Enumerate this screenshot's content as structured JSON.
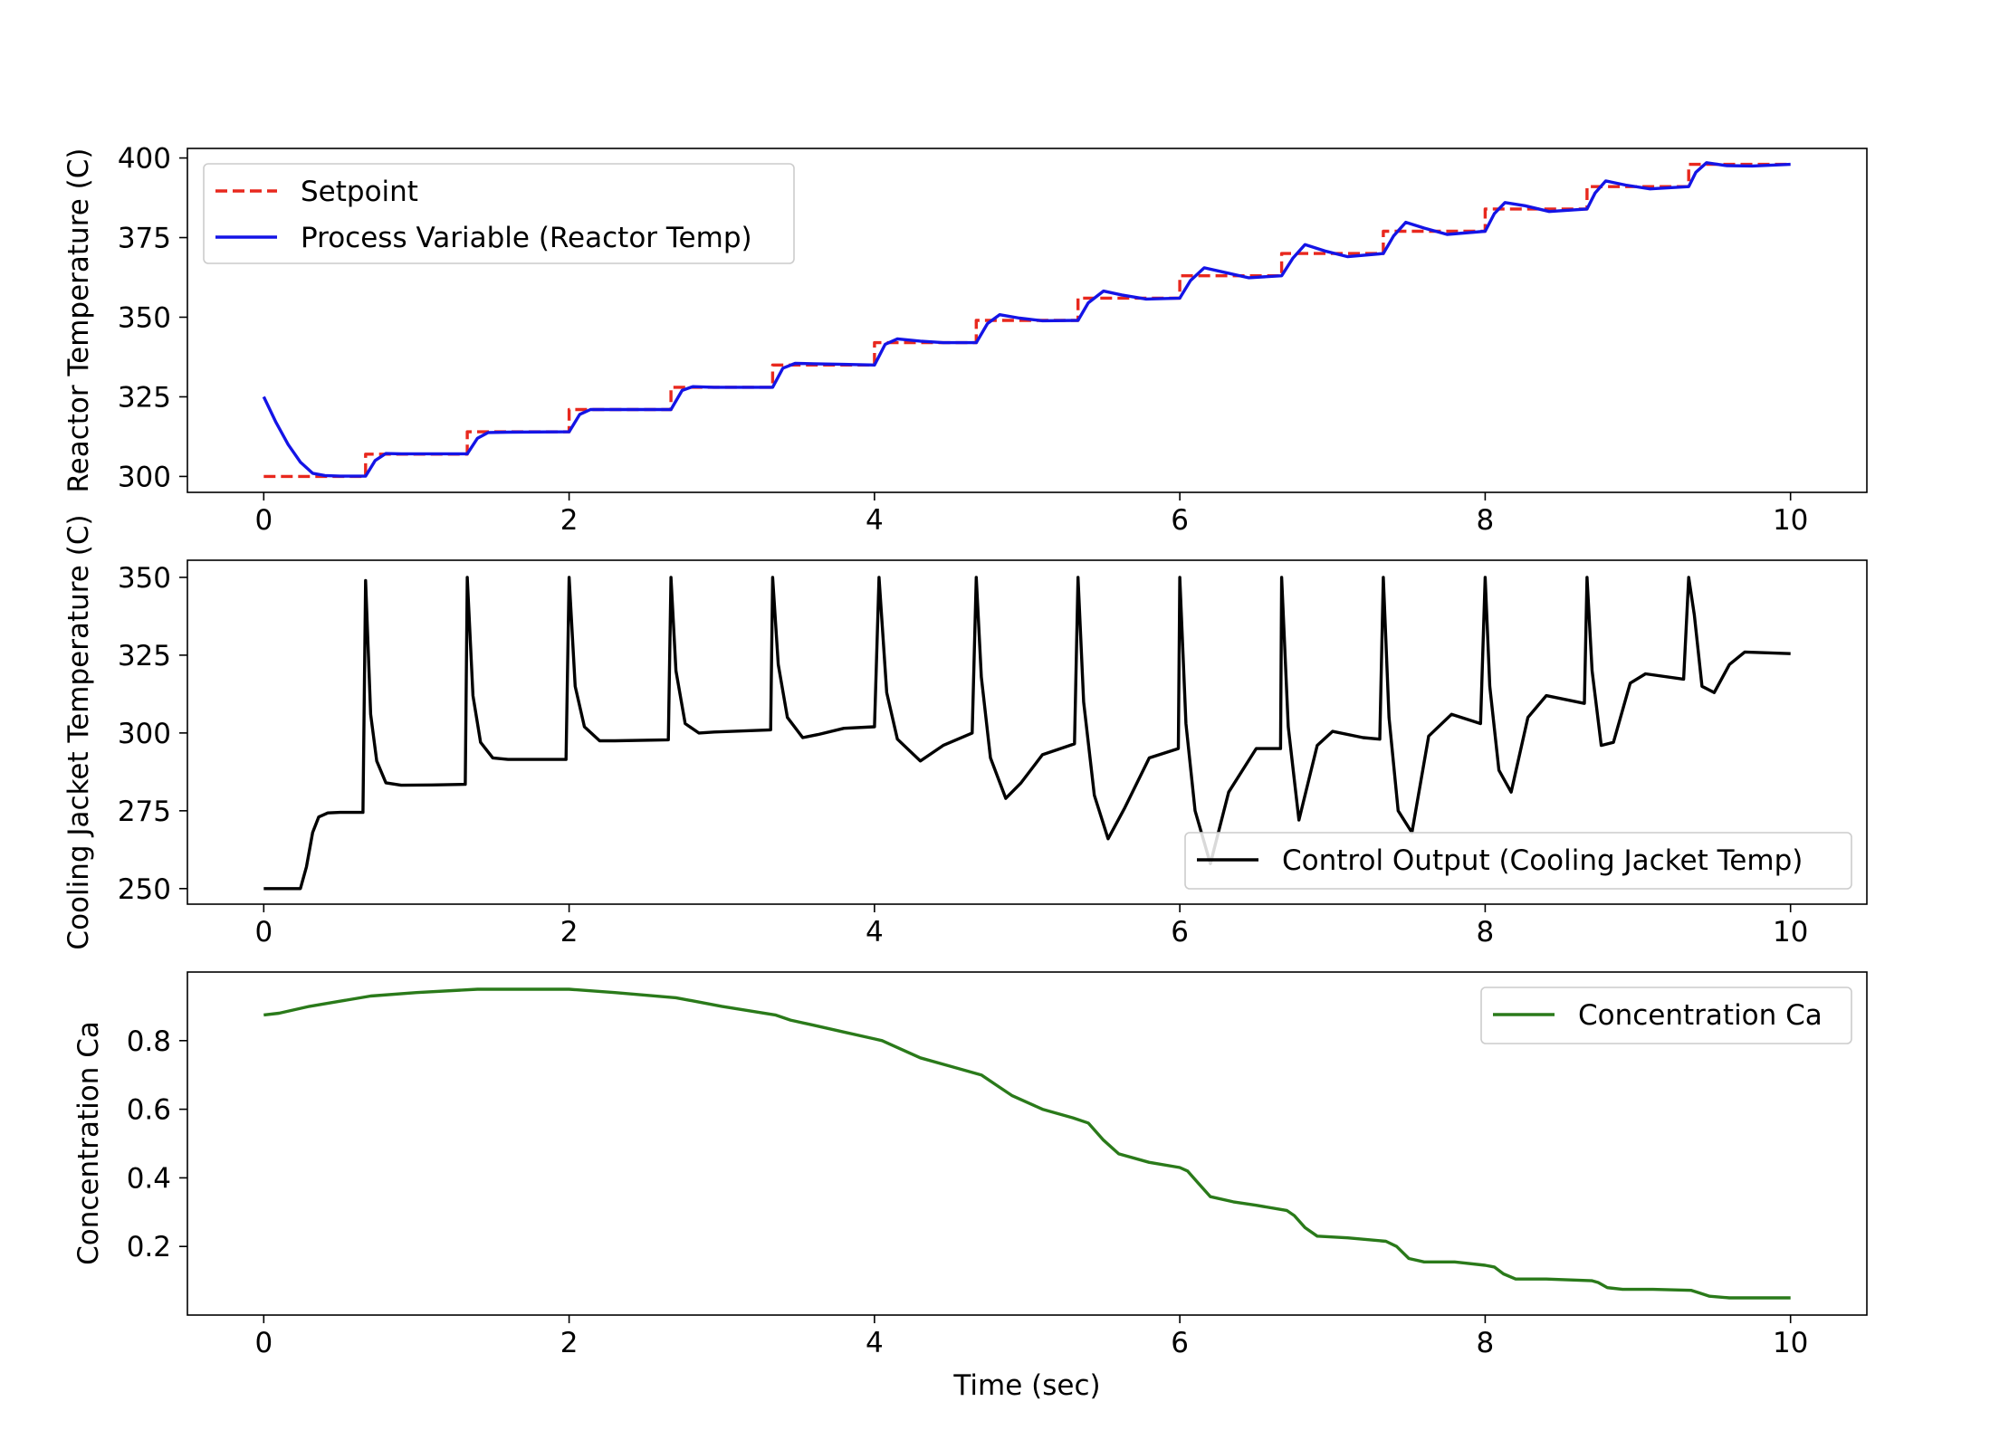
{
  "chart_data": [
    {
      "type": "line",
      "title": "",
      "xlabel": "",
      "ylabel": "Reactor Temperature (C)",
      "xlim": [
        -0.5,
        10.5
      ],
      "ylim": [
        295,
        403
      ],
      "xticks": [
        0,
        2,
        4,
        6,
        8,
        10
      ],
      "yticks": [
        300,
        325,
        350,
        375,
        400
      ],
      "grid": false,
      "legend": "upper-left",
      "series": [
        {
          "name": "Setpoint",
          "color": "#e8281e",
          "style": "dashed",
          "x": [
            0.0,
            0.667,
            0.667,
            1.333,
            1.333,
            2.0,
            2.0,
            2.667,
            2.667,
            3.333,
            3.333,
            4.0,
            4.0,
            4.667,
            4.667,
            5.333,
            5.333,
            6.0,
            6.0,
            6.667,
            6.667,
            7.333,
            7.333,
            8.0,
            8.0,
            8.667,
            8.667,
            9.333,
            9.333,
            10.0
          ],
          "y": [
            300,
            300,
            307,
            307,
            314,
            314,
            321,
            321,
            328,
            328,
            335,
            335,
            342,
            342,
            349,
            349,
            356,
            356,
            363,
            363,
            370,
            370,
            377,
            377,
            384,
            384,
            391,
            391,
            398,
            398
          ]
        },
        {
          "name": "Process Variable (Reactor Temp)",
          "color": "#1414e6",
          "style": "solid",
          "x": [
            0.0,
            0.08,
            0.16,
            0.24,
            0.32,
            0.4,
            0.5,
            0.667,
            0.73,
            0.8,
            0.9,
            1.333,
            1.4,
            1.47,
            1.6,
            2.0,
            2.07,
            2.14,
            2.3,
            2.667,
            2.74,
            2.81,
            2.95,
            3.333,
            3.4,
            3.48,
            3.6,
            3.8,
            4.0,
            4.07,
            4.15,
            4.3,
            4.45,
            4.667,
            4.74,
            4.82,
            4.95,
            5.1,
            5.333,
            5.4,
            5.5,
            5.62,
            5.78,
            6.0,
            6.07,
            6.16,
            6.3,
            6.45,
            6.667,
            6.74,
            6.82,
            6.95,
            7.1,
            7.333,
            7.4,
            7.48,
            7.6,
            7.75,
            8.0,
            8.06,
            8.13,
            8.26,
            8.42,
            8.667,
            8.72,
            8.79,
            8.92,
            9.08,
            9.333,
            9.38,
            9.45,
            9.58,
            9.75,
            10.0
          ],
          "y": [
            325,
            317,
            310,
            304.5,
            301,
            300.3,
            300.1,
            300.1,
            305,
            307.2,
            307.1,
            307.1,
            312,
            313.8,
            313.9,
            314,
            319.5,
            321,
            321,
            321,
            327,
            328.2,
            328,
            328,
            334,
            335.5,
            335.4,
            335.2,
            335,
            341.5,
            343.2,
            342.5,
            342,
            342,
            348,
            350.8,
            349.7,
            348.9,
            349,
            354.5,
            358.2,
            357,
            355.7,
            356,
            361.5,
            365.5,
            364,
            362.4,
            363,
            368.5,
            372.8,
            370.8,
            369,
            370,
            375.5,
            379.8,
            378,
            376,
            377,
            382.5,
            386,
            385,
            383.2,
            384,
            389,
            392.8,
            391.5,
            390.3,
            391,
            395.5,
            398.5,
            397.6,
            397.5,
            398
          ]
        }
      ]
    },
    {
      "type": "line",
      "title": "",
      "xlabel": "Time (sec)",
      "ylabel": "Cooling Jacket Temperature (C)",
      "xlim": [
        -0.5,
        10.5
      ],
      "ylim": [
        245,
        355.5
      ],
      "xticks": [
        0,
        2,
        4,
        6,
        8,
        10
      ],
      "yticks": [
        250,
        275,
        300,
        325,
        350
      ],
      "grid": false,
      "legend": "lower-right",
      "series": [
        {
          "name": "Control Output (Cooling Jacket Temp)",
          "color": "#000000",
          "style": "solid",
          "x": [
            0.0,
            0.24,
            0.28,
            0.32,
            0.36,
            0.42,
            0.5,
            0.65,
            0.667,
            0.7,
            0.74,
            0.8,
            0.9,
            1.1,
            1.32,
            1.333,
            1.37,
            1.42,
            1.5,
            1.6,
            1.98,
            2.0,
            2.04,
            2.1,
            2.2,
            2.3,
            2.65,
            2.667,
            2.7,
            2.76,
            2.85,
            2.95,
            3.32,
            3.333,
            3.37,
            3.43,
            3.53,
            3.63,
            3.8,
            4.0,
            4.03,
            4.08,
            4.15,
            4.3,
            4.45,
            4.64,
            4.667,
            4.7,
            4.76,
            4.86,
            4.96,
            5.1,
            5.31,
            5.333,
            5.37,
            5.44,
            5.53,
            5.64,
            5.8,
            5.99,
            6.0,
            6.04,
            6.1,
            6.2,
            6.32,
            6.5,
            6.66,
            6.667,
            6.71,
            6.78,
            6.9,
            7.0,
            7.2,
            7.31,
            7.333,
            7.37,
            7.43,
            7.52,
            7.63,
            7.78,
            7.97,
            8.0,
            8.03,
            8.09,
            8.17,
            8.28,
            8.4,
            8.65,
            8.667,
            8.7,
            8.76,
            8.84,
            8.95,
            9.05,
            9.3,
            9.333,
            9.37,
            9.42,
            9.5,
            9.6,
            9.7,
            10.0
          ],
          "y": [
            250,
            250,
            257,
            268,
            273,
            274.3,
            274.5,
            274.5,
            349,
            306,
            291,
            284,
            283.2,
            283.3,
            283.5,
            350,
            312,
            297,
            292,
            291.5,
            291.5,
            350,
            315,
            302,
            297.5,
            297.5,
            297.8,
            350,
            320,
            303,
            300,
            300.3,
            301,
            350,
            322,
            305,
            298.5,
            299.5,
            301.5,
            302,
            350,
            313,
            298,
            291,
            296,
            300,
            350,
            318,
            292,
            279,
            284,
            293,
            296.5,
            350,
            310,
            280,
            266,
            276,
            292,
            295,
            350,
            303,
            275,
            258,
            281,
            295,
            295,
            350,
            302,
            272,
            296,
            300.5,
            298.5,
            298,
            350,
            305,
            275,
            268,
            299,
            306,
            303,
            350,
            315,
            288,
            281,
            305,
            312,
            309.5,
            350,
            320,
            296,
            297,
            316,
            319,
            317.3,
            350,
            338,
            315,
            313,
            322,
            326,
            325.5
          ]
        }
      ]
    },
    {
      "type": "line",
      "title": "",
      "xlabel": "Time (sec)",
      "ylabel": "Concentration Ca",
      "xlim": [
        -0.5,
        10.5
      ],
      "ylim": [
        0.0,
        1.0
      ],
      "xticks": [
        0,
        2,
        4,
        6,
        8,
        10
      ],
      "yticks": [
        0.2,
        0.4,
        0.6,
        0.8
      ],
      "yticklabels": [
        "0.2",
        "0.4",
        "0.6",
        "0.8"
      ],
      "grid": false,
      "legend": "upper-right",
      "series": [
        {
          "name": "Concentration Ca",
          "color": "#2a7a1a",
          "style": "solid",
          "x": [
            0.0,
            0.1,
            0.3,
            0.5,
            0.7,
            1.0,
            1.4,
            2.0,
            2.3,
            2.7,
            3.0,
            3.35,
            3.45,
            3.6,
            3.8,
            4.0,
            4.05,
            4.15,
            4.3,
            4.5,
            4.7,
            4.8,
            4.9,
            5.1,
            5.3,
            5.4,
            5.5,
            5.6,
            5.8,
            6.0,
            6.05,
            6.12,
            6.2,
            6.35,
            6.5,
            6.7,
            6.75,
            6.82,
            6.9,
            7.1,
            7.35,
            7.42,
            7.5,
            7.6,
            7.8,
            8.0,
            8.06,
            8.12,
            8.2,
            8.4,
            8.7,
            8.74,
            8.8,
            8.9,
            9.1,
            9.35,
            9.4,
            9.47,
            9.6,
            10.0
          ],
          "y": [
            0.875,
            0.88,
            0.9,
            0.915,
            0.93,
            0.94,
            0.95,
            0.95,
            0.94,
            0.925,
            0.9,
            0.875,
            0.86,
            0.845,
            0.825,
            0.805,
            0.8,
            0.78,
            0.75,
            0.725,
            0.7,
            0.67,
            0.64,
            0.6,
            0.575,
            0.56,
            0.51,
            0.47,
            0.445,
            0.43,
            0.42,
            0.385,
            0.345,
            0.33,
            0.32,
            0.305,
            0.29,
            0.255,
            0.23,
            0.225,
            0.215,
            0.2,
            0.165,
            0.155,
            0.155,
            0.145,
            0.14,
            0.12,
            0.105,
            0.105,
            0.1,
            0.095,
            0.08,
            0.075,
            0.075,
            0.072,
            0.065,
            0.055,
            0.05,
            0.05
          ]
        }
      ]
    }
  ]
}
